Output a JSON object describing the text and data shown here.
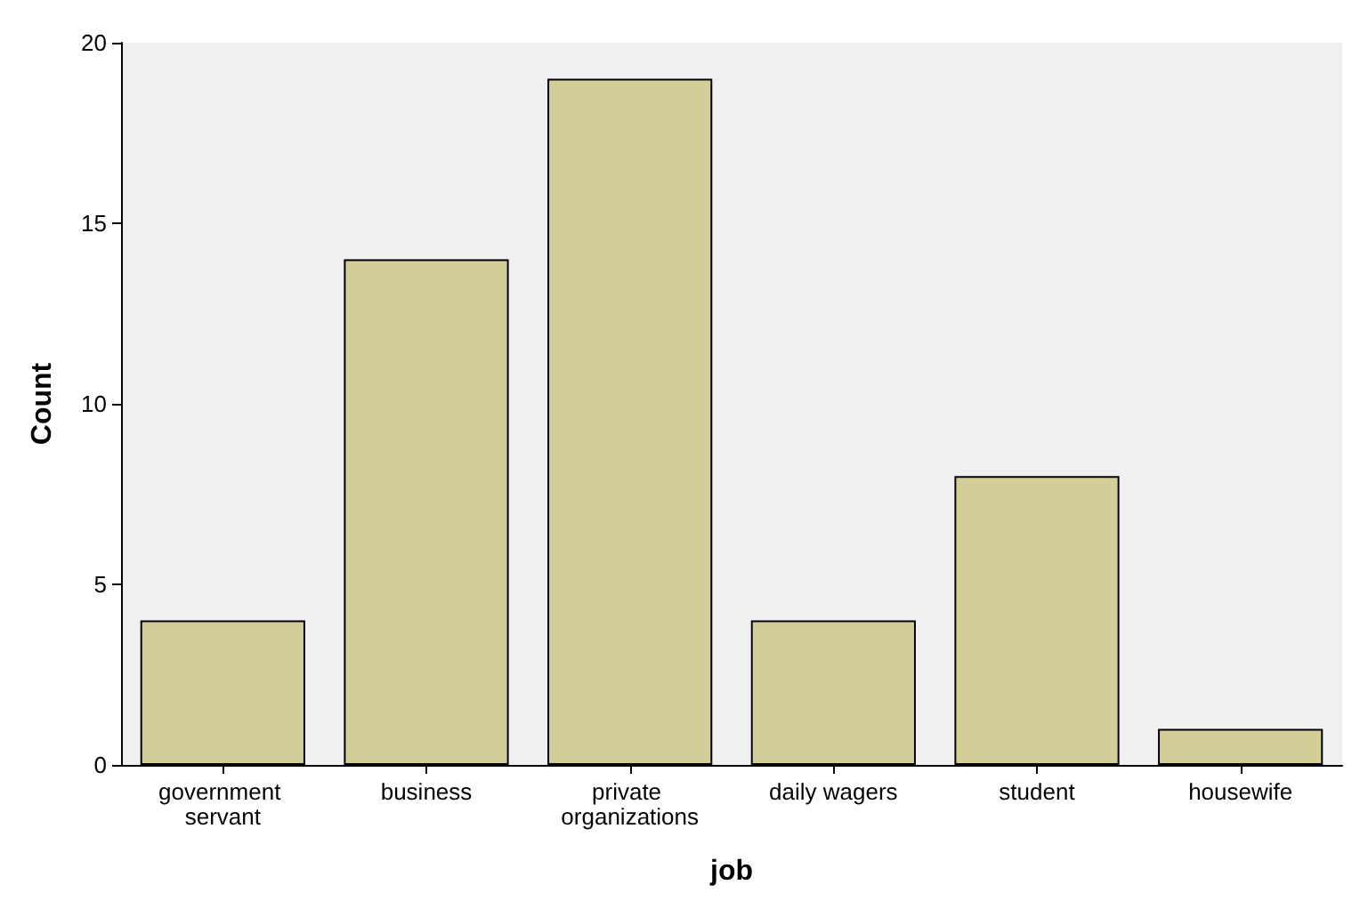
{
  "chart_data": {
    "type": "bar",
    "xlabel": "job",
    "ylabel": "Count",
    "categories": [
      "government servant",
      "business",
      "private organizations",
      "daily wagers",
      "student",
      "housewife"
    ],
    "values": [
      4,
      14,
      19,
      4,
      8,
      1
    ],
    "color": "#d3ce98",
    "ylim": [
      0,
      20
    ],
    "yticks": [
      0,
      5,
      10,
      15,
      20
    ]
  }
}
